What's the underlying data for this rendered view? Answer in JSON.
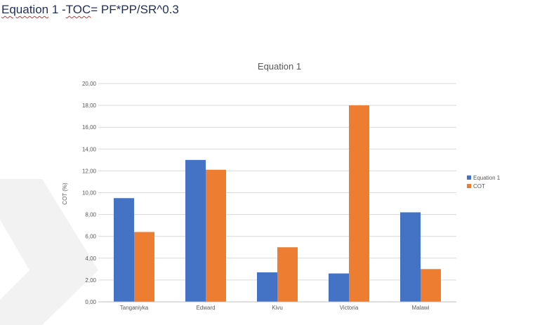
{
  "document": {
    "heading_part1": "Equation",
    "heading_part2": " 1 -",
    "heading_part3": "TOC",
    "heading_part4": "= PF*PP/SR^0.3"
  },
  "colors": {
    "series_1": "#4472c4",
    "series_2": "#ed7d31",
    "gridline": "#d9d9d9",
    "axis_line": "#bfbfbf",
    "chevron": "#f2f2f2"
  },
  "chart_data": {
    "type": "bar",
    "title": "Equation 1",
    "xlabel": "",
    "ylabel": "COT (%)",
    "ylim": [
      0,
      20
    ],
    "y_ticks": [
      "0,00",
      "2,00",
      "4,00",
      "6,00",
      "8,00",
      "10,00",
      "12,00",
      "14,00",
      "16,00",
      "18,00",
      "20,00"
    ],
    "categories": [
      "Tanganiyka",
      "Edward",
      "Kivu",
      "Victoria",
      "Malawi"
    ],
    "series": [
      {
        "name": "Equation 1",
        "values": [
          9.5,
          13.0,
          2.7,
          2.6,
          8.2
        ]
      },
      {
        "name": "COT",
        "values": [
          6.4,
          12.1,
          5.0,
          18.0,
          3.0
        ]
      }
    ],
    "grid": true,
    "legend_position": "right"
  }
}
